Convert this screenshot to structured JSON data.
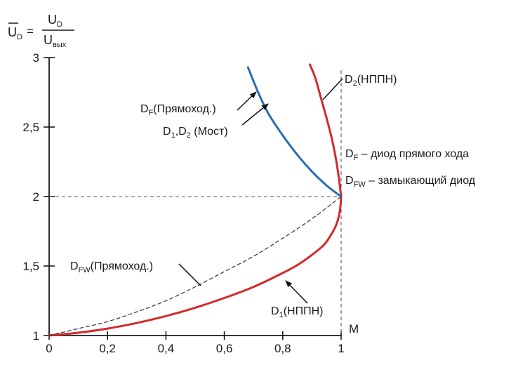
{
  "chart_data": {
    "type": "line",
    "ylabel": {
      "lhs_base": "U",
      "lhs_sub": "D",
      "num_base": "U",
      "num_sub": "D",
      "den_base": "U",
      "den_sub": "вых"
    },
    "xlabel": "M",
    "xlim": [
      0,
      1
    ],
    "ylim": [
      1,
      3
    ],
    "x_ticks": [
      0,
      0.2,
      0.4,
      0.6,
      0.8,
      1
    ],
    "x_tick_labels": [
      "0",
      "0,2",
      "0,4",
      "0,6",
      "0,8",
      "1"
    ],
    "y_ticks": [
      1,
      1.5,
      2,
      2.5,
      3
    ],
    "y_tick_labels": [
      "1",
      "1,5",
      "2",
      "2,5",
      "3"
    ],
    "reference_lines": {
      "x": 1,
      "y": 2
    },
    "series": [
      {
        "key": "red_upper",
        "color": "#d42a2a",
        "style": "solid",
        "points": [
          [
            0.893,
            2.95
          ],
          [
            0.912,
            2.85
          ],
          [
            0.932,
            2.7
          ],
          [
            0.952,
            2.55
          ],
          [
            0.97,
            2.4
          ],
          [
            0.984,
            2.25
          ],
          [
            0.993,
            2.12
          ],
          [
            1.0,
            2.0
          ]
        ]
      },
      {
        "key": "red_lower",
        "color": "#d42a2a",
        "style": "solid",
        "points": [
          [
            1.0,
            2.0
          ],
          [
            0.996,
            1.9
          ],
          [
            0.984,
            1.8
          ],
          [
            0.964,
            1.72
          ],
          [
            0.935,
            1.64
          ],
          [
            0.86,
            1.52
          ],
          [
            0.8,
            1.45
          ],
          [
            0.7,
            1.35
          ],
          [
            0.6,
            1.27
          ],
          [
            0.5,
            1.2
          ],
          [
            0.4,
            1.14
          ],
          [
            0.3,
            1.09
          ],
          [
            0.2,
            1.05
          ],
          [
            0.1,
            1.02
          ],
          [
            0.0,
            1.0
          ]
        ]
      },
      {
        "key": "blue",
        "color": "#2a6db5",
        "style": "solid",
        "points": [
          [
            0.681,
            2.93
          ],
          [
            0.7,
            2.83
          ],
          [
            0.72,
            2.73
          ],
          [
            0.75,
            2.6
          ],
          [
            0.8,
            2.44
          ],
          [
            0.85,
            2.3
          ],
          [
            0.9,
            2.18
          ],
          [
            0.95,
            2.08
          ],
          [
            1.0,
            2.0
          ]
        ]
      },
      {
        "key": "dashed",
        "color": "#333333",
        "style": "dashed",
        "points": [
          [
            0.0,
            1.0
          ],
          [
            0.1,
            1.05
          ],
          [
            0.2,
            1.1
          ],
          [
            0.3,
            1.17
          ],
          [
            0.4,
            1.25
          ],
          [
            0.5,
            1.35
          ],
          [
            0.6,
            1.46
          ],
          [
            0.7,
            1.57
          ],
          [
            0.8,
            1.7
          ],
          [
            0.9,
            1.84
          ],
          [
            1.0,
            2.0
          ]
        ]
      }
    ],
    "annotations": [
      {
        "key": "df_pryamokhod",
        "base": "D",
        "sub": "F",
        "rest": "(Прямоход.)"
      },
      {
        "key": "d1d2_most",
        "base": "D",
        "sub": "1",
        "mid": ",D",
        "sub2": "2",
        "rest": " (Мост)"
      },
      {
        "key": "d2_nppn",
        "base": "D",
        "sub": "2",
        "rest": "(НППН)"
      },
      {
        "key": "df_legend",
        "base": "D",
        "sub": "F",
        "rest": " – диод прямого хода"
      },
      {
        "key": "dfw_legend",
        "base": "D",
        "sub": "FW",
        "rest": " – замыкающий диод"
      },
      {
        "key": "dfw_pryamokhod",
        "base": "D",
        "sub": "FW",
        "rest": "(Прямоход.)"
      },
      {
        "key": "d1_nppn",
        "base": "D",
        "sub": "1",
        "rest": "(НППН)"
      }
    ]
  }
}
